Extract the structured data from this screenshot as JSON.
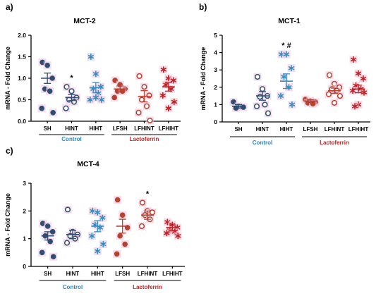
{
  "colors": {
    "SH": "#2d4e73",
    "HINT": "#2d4e73",
    "HIHT": "#2f8fc2",
    "LFSH": "#b5432f",
    "LFHINT": "#b5432f",
    "LFHIHT": "#c02020",
    "highlight": "#f2c4dc",
    "control_text": "#2f86c0",
    "lactoferrin_text": "#c02020",
    "axis": "#000000"
  },
  "chart_data": [
    {
      "type": "scatter",
      "panel": "a)",
      "title": "MCT-2",
      "ylabel": "mRNA - Fold Change",
      "ylim": [
        0.0,
        2.0
      ],
      "yticks": [
        "0.0",
        "0.5",
        "1.0",
        "1.5",
        "2.0"
      ],
      "categories": [
        "SH",
        "HINT",
        "HIHT",
        "LFSH",
        "LFHINT",
        "LFHIHT"
      ],
      "marker_types": [
        "filled-circle",
        "open-circle",
        "asterisk",
        "filled-circle",
        "open-circle",
        "asterisk"
      ],
      "groups": [
        {
          "label": "Control",
          "span": [
            0,
            2
          ]
        },
        {
          "label": "Lactoferrin",
          "span": [
            3,
            5
          ]
        }
      ],
      "means": [
        1.0,
        0.55,
        0.78,
        0.75,
        0.58,
        0.8
      ],
      "sems": [
        0.12,
        0.07,
        0.12,
        0.07,
        0.13,
        0.1
      ],
      "points": [
        [
          1.37,
          1.3,
          1.0,
          0.75,
          0.7,
          0.3,
          0.2
        ],
        [
          0.8,
          0.7,
          0.55,
          0.5,
          0.45,
          0.3
        ],
        [
          1.5,
          1.1,
          0.8,
          0.75,
          0.65,
          0.5,
          0.5,
          0.55
        ],
        [
          0.95,
          0.85,
          0.75,
          0.7,
          0.7,
          0.55
        ],
        [
          1.05,
          0.8,
          0.6,
          0.5,
          0.35,
          0.2,
          0.0
        ],
        [
          1.2,
          1.0,
          0.95,
          0.85,
          0.75,
          0.6,
          0.45,
          0.3
        ]
      ],
      "annotations": [
        {
          "category": 1,
          "text": "*"
        }
      ]
    },
    {
      "type": "scatter",
      "panel": "b)",
      "title": "MCT-1",
      "ylabel": "mRNA - Fold Change",
      "ylim": [
        0,
        5
      ],
      "yticks": [
        "0",
        "1",
        "2",
        "3",
        "4",
        "5"
      ],
      "categories": [
        "SH",
        "HINT",
        "HIHT",
        "LFSH",
        "LFHINT",
        "LFHIHT"
      ],
      "marker_types": [
        "filled-circle",
        "open-circle",
        "asterisk",
        "filled-circle",
        "open-circle",
        "asterisk"
      ],
      "groups": [
        {
          "label": "Control",
          "span": [
            0,
            2
          ]
        },
        {
          "label": "Lactoferrin",
          "span": [
            3,
            5
          ]
        }
      ],
      "means": [
        0.9,
        1.5,
        2.35,
        1.2,
        1.8,
        1.9
      ],
      "sems": [
        0.1,
        0.25,
        0.42,
        0.08,
        0.15,
        0.22
      ],
      "points": [
        [
          1.15,
          0.9,
          0.85,
          0.8
        ],
        [
          2.6,
          1.9,
          1.5,
          1.45,
          1.0,
          0.9,
          0.5
        ],
        [
          3.9,
          3.9,
          3.1,
          2.6,
          2.0,
          1.5,
          1.0
        ],
        [
          1.3,
          1.2,
          1.15,
          1.1,
          1.05
        ],
        [
          2.7,
          2.2,
          2.0,
          1.9,
          1.8,
          1.6,
          1.5,
          1.1
        ],
        [
          3.6,
          2.8,
          2.5,
          2.1,
          1.9,
          1.8,
          1.7,
          1.0,
          0.9
        ]
      ],
      "annotations": [
        {
          "category": 2,
          "text": "* #"
        }
      ]
    },
    {
      "type": "scatter",
      "panel": "c)",
      "title": "MCT-4",
      "ylabel": "mRNA - Fold Change",
      "ylim": [
        0,
        3
      ],
      "yticks": [
        "0",
        "1",
        "2",
        "3"
      ],
      "categories": [
        "SH",
        "HINT",
        "HIHT",
        "LFSH",
        "LFHINT",
        "LFHIHT"
      ],
      "marker_types": [
        "filled-circle",
        "open-circle",
        "asterisk",
        "filled-circle",
        "open-circle",
        "asterisk"
      ],
      "groups": [
        {
          "label": "Control",
          "span": [
            0,
            2
          ]
        },
        {
          "label": "Lactoferrin",
          "span": [
            3,
            5
          ]
        }
      ],
      "means": [
        1.1,
        1.15,
        1.45,
        1.45,
        1.85,
        1.4
      ],
      "sems": [
        0.15,
        0.15,
        0.2,
        0.25,
        0.15,
        0.1
      ],
      "points": [
        [
          1.55,
          1.45,
          1.25,
          1.1,
          0.9,
          0.5,
          0.35
        ],
        [
          2.05,
          1.25,
          1.15,
          1.1,
          1.0,
          0.85
        ],
        [
          2.0,
          1.95,
          1.75,
          1.5,
          1.4,
          1.1,
          0.8,
          0.55
        ],
        [
          2.4,
          1.85,
          1.4,
          1.1,
          0.8,
          0.45
        ],
        [
          2.3,
          2.0,
          1.95,
          1.85,
          1.7,
          1.45
        ],
        [
          1.6,
          1.5,
          1.4,
          1.3,
          1.25,
          1.2,
          1.1
        ]
      ],
      "annotations": [
        {
          "category": 4,
          "text": "*"
        }
      ]
    }
  ]
}
